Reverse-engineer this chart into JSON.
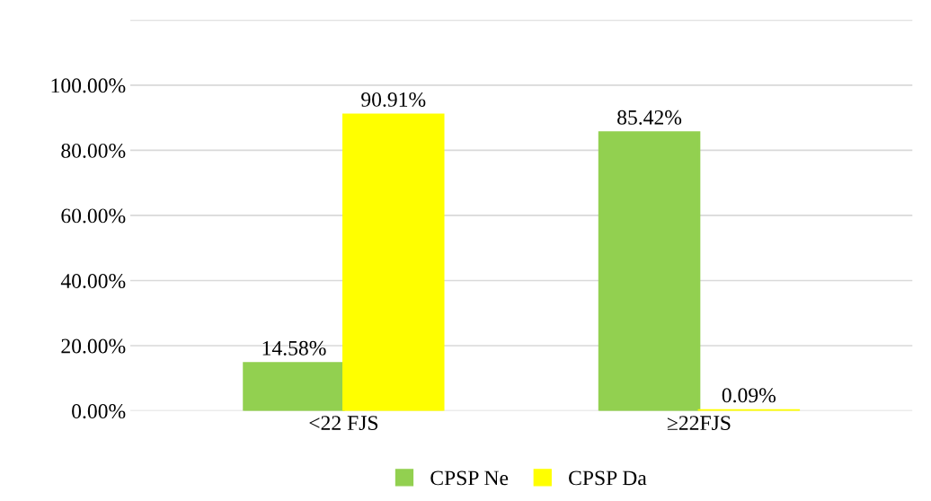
{
  "chart_data": {
    "type": "bar",
    "categories": [
      "<22 FJS",
      "≥22FJS"
    ],
    "series": [
      {
        "name": "CPSP Ne",
        "color": "#92d050",
        "values": [
          14.58,
          85.42
        ]
      },
      {
        "name": "CPSP Da",
        "color": "#ffff00",
        "values": [
          90.91,
          0.09
        ]
      }
    ],
    "ylim": [
      0,
      120
    ],
    "yticks": [
      {
        "value": 0,
        "label": "0.00%"
      },
      {
        "value": 20,
        "label": "20.00%"
      },
      {
        "value": 40,
        "label": "40.00%"
      },
      {
        "value": 60,
        "label": "60.00%"
      },
      {
        "value": 80,
        "label": "80.00%"
      },
      {
        "value": 100,
        "label": "100.00%"
      },
      {
        "value": 120,
        "label": null
      }
    ],
    "value_labels": [
      [
        "14.58%",
        "85.42%"
      ],
      [
        "90.91%",
        "0.09%"
      ]
    ],
    "grid": "y",
    "legend": "bottom"
  }
}
